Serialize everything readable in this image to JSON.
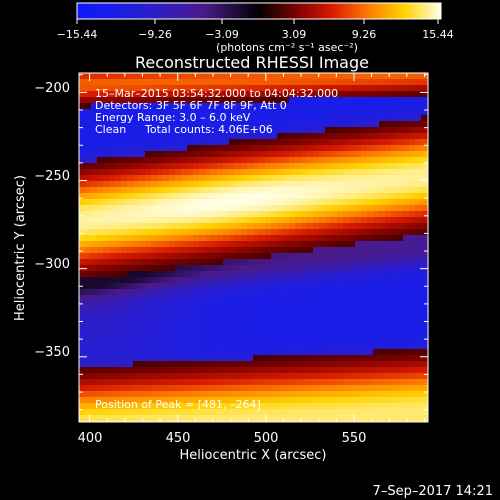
{
  "colorbar": {
    "ticks": [
      "−15.44",
      "−9.26",
      "−3.09",
      "3.09",
      "9.26",
      "15.44"
    ],
    "unit_label": "(photons cm⁻² s⁻¹ asec⁻²)",
    "min": -15.44,
    "max": 15.44
  },
  "title": "Reconstructed RHESSI Image",
  "info": {
    "line1": "15–Mar–2015 03:54:32.000 to 04:04:32.000",
    "line2": "Detectors: 3F 5F 6F 7F 8F 9F, Att 0",
    "line3": "Energy Range: 3.0 – 6.0 keV",
    "line4_method": "Clean",
    "line4_counts": "Total counts: 4.06E+06",
    "peak": "Position of Peak = [481, –264]"
  },
  "axes": {
    "x_label": "Heliocentric X (arcsec)",
    "y_label": "Heliocentric Y (arcsec)",
    "x_ticks": [
      "400",
      "450",
      "500",
      "550"
    ],
    "y_ticks": [
      "−200",
      "−250",
      "−300",
      "−350"
    ],
    "x_range": [
      394,
      592
    ],
    "y_range": [
      -387,
      -189
    ]
  },
  "chart_data": {
    "type": "heatmap",
    "colormap": "blue-purple-red-yellow-white",
    "x_range": [
      394,
      592
    ],
    "y_range": [
      -387,
      -189
    ],
    "peak": [
      481,
      -264
    ]
  },
  "footer": {
    "date": "7–Sep–2017 14:21"
  }
}
